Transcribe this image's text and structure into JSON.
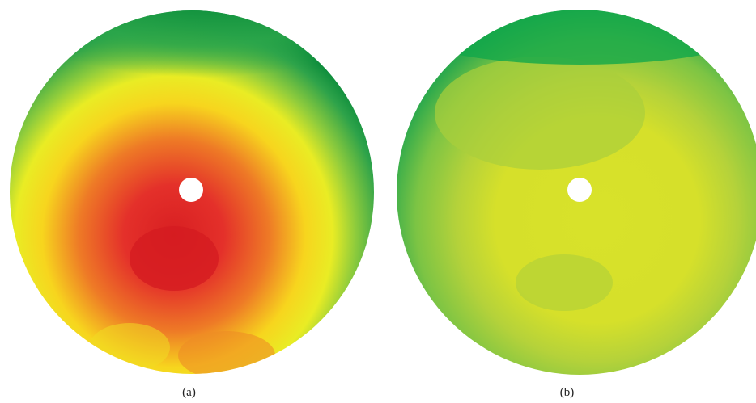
{
  "figure": {
    "panels": [
      {
        "caption": "(a)",
        "colors": {
          "outer": "#0a8a3a",
          "mid_green": "#5cb84a",
          "yellow": "#f2ef1a",
          "orange": "#ef8a22",
          "red": "#de2222",
          "hole": "#ffffff"
        }
      },
      {
        "caption": "(b)",
        "colors": {
          "outer": "#11a64a",
          "mid_green": "#7cc444",
          "light_green": "#a9cf3c",
          "yellow_green": "#d5e02a",
          "hole": "#ffffff"
        }
      }
    ]
  }
}
